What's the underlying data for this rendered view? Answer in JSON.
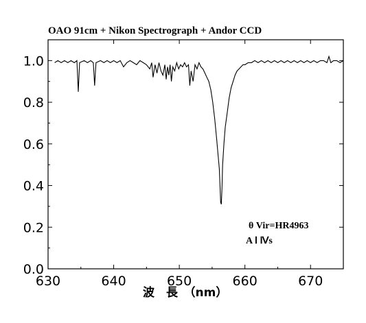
{
  "chart_data": {
    "type": "line",
    "title": "OAO 91cm + Nikon Spectrograph + Andor CCD",
    "xlabel": "波　長　（nm）",
    "ylabel": "",
    "xlim": [
      630,
      675
    ],
    "ylim": [
      0,
      1.1
    ],
    "x_ticks": [
      "630",
      "640",
      "650",
      "660",
      "670"
    ],
    "y_ticks": [
      "0.0",
      "0.2",
      "0.4",
      "0.6",
      "0.8",
      "1.0"
    ],
    "grid": false,
    "annotations": [
      "θ Vir=HR4963",
      "A Ⅰ Ⅳs"
    ],
    "series": [
      {
        "color": "#000000",
        "x": [
          631.0,
          631.5,
          632.0,
          632.5,
          633.0,
          633.5,
          634.0,
          634.4,
          634.6,
          634.8,
          635.5,
          636.0,
          636.5,
          636.9,
          637.1,
          637.3,
          638.0,
          638.5,
          639.0,
          639.5,
          640.0,
          640.5,
          641.0,
          641.5,
          642.0,
          642.5,
          643.0,
          643.5,
          644.0,
          644.5,
          645.0,
          645.5,
          645.8,
          646.0,
          646.3,
          646.6,
          646.9,
          647.2,
          647.5,
          647.8,
          648.0,
          648.2,
          648.4,
          648.6,
          648.8,
          649.0,
          649.3,
          649.6,
          649.9,
          650.2,
          650.5,
          650.8,
          651.1,
          651.4,
          651.6,
          651.8,
          652.1,
          652.4,
          652.7,
          653.0,
          653.3,
          653.6,
          653.9,
          654.2,
          654.5,
          654.8,
          655.1,
          655.4,
          655.7,
          655.9,
          656.1,
          656.2,
          656.3,
          656.4,
          656.5,
          656.6,
          656.8,
          657.0,
          657.3,
          657.6,
          657.9,
          658.2,
          658.5,
          658.8,
          659.1,
          659.4,
          659.7,
          660.0,
          660.5,
          661.0,
          661.5,
          662.0,
          662.5,
          663.0,
          663.5,
          664.0,
          664.5,
          665.0,
          665.5,
          666.0,
          666.5,
          667.0,
          667.5,
          668.0,
          668.5,
          669.0,
          669.5,
          670.0,
          670.5,
          671.0,
          671.5,
          672.0,
          672.5,
          672.8,
          673.1,
          673.5,
          674.0,
          674.5,
          675.0
        ],
        "values": [
          0.99,
          1.0,
          0.99,
          1.0,
          0.99,
          1.0,
          0.99,
          1.0,
          0.85,
          0.99,
          1.0,
          0.99,
          1.0,
          0.99,
          0.88,
          0.99,
          1.0,
          0.99,
          1.0,
          0.99,
          1.0,
          0.99,
          1.0,
          0.97,
          0.99,
          1.0,
          0.99,
          0.98,
          1.0,
          0.99,
          0.98,
          0.96,
          0.99,
          0.92,
          0.98,
          0.94,
          0.99,
          0.95,
          0.93,
          0.98,
          0.91,
          0.97,
          0.93,
          0.98,
          0.9,
          0.97,
          0.95,
          0.99,
          0.96,
          0.98,
          0.97,
          0.99,
          0.97,
          0.98,
          0.88,
          0.95,
          0.9,
          0.98,
          0.96,
          0.99,
          0.97,
          0.96,
          0.94,
          0.92,
          0.9,
          0.86,
          0.8,
          0.72,
          0.62,
          0.55,
          0.48,
          0.4,
          0.32,
          0.31,
          0.38,
          0.5,
          0.6,
          0.68,
          0.75,
          0.82,
          0.87,
          0.9,
          0.93,
          0.95,
          0.96,
          0.97,
          0.98,
          0.98,
          0.99,
          0.99,
          1.0,
          0.99,
          1.0,
          0.99,
          1.0,
          0.99,
          1.0,
          0.99,
          1.0,
          0.99,
          1.0,
          0.99,
          1.0,
          0.99,
          1.0,
          0.99,
          1.0,
          0.99,
          1.0,
          0.99,
          1.0,
          1.0,
          0.99,
          1.02,
          0.99,
          1.0,
          1.0,
          0.99,
          1.0
        ]
      }
    ]
  }
}
